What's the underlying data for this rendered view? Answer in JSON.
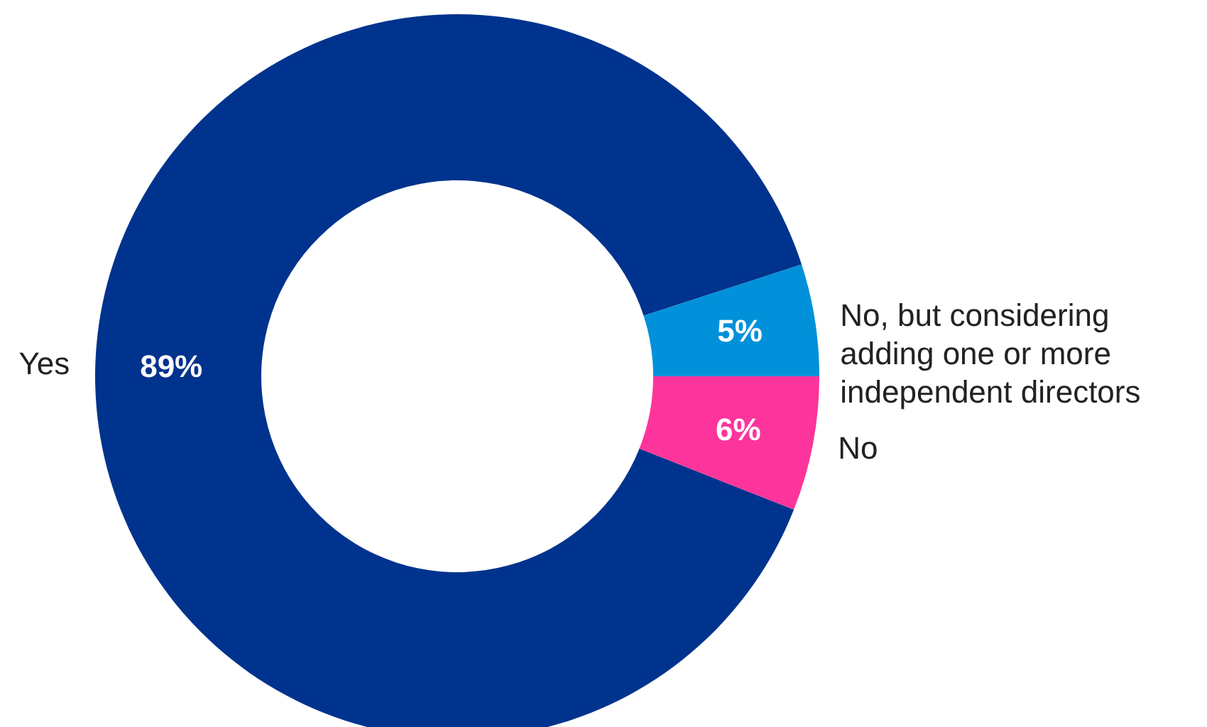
{
  "chart_data": {
    "type": "donut",
    "categories": [
      "Yes",
      "No, but considering adding one or more independent directors",
      "No"
    ],
    "values": [
      89,
      5,
      6
    ],
    "colors": [
      "#00338d",
      "#0091da",
      "#fd349c"
    ],
    "data_labels": true,
    "value_labels": [
      "89%",
      "5%",
      "6%"
    ]
  }
}
